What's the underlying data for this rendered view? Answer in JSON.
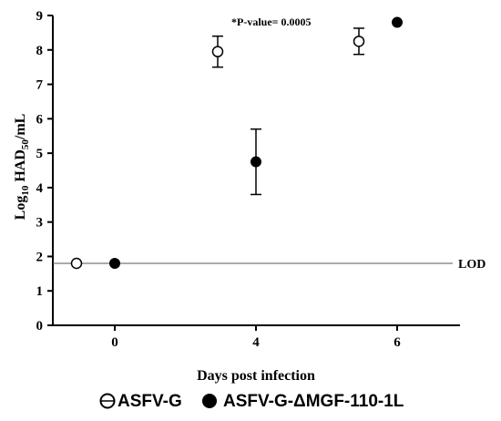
{
  "chart_data": {
    "type": "scatter",
    "title": "",
    "ylabel_main": "Log",
    "ylabel_sub": "10",
    "ylabel_mid": " HAD",
    "ylabel_sub2": "50",
    "ylabel_end": "/mL",
    "xlabel": "Days post infection",
    "ylim": [
      0,
      9
    ],
    "yticks": [
      "0",
      "1",
      "2",
      "3",
      "4",
      "5",
      "6",
      "7",
      "8",
      "9"
    ],
    "xticks": [
      "0",
      "4",
      "6"
    ],
    "annotation": "*P-value= 0.0005",
    "lod": {
      "value": 1.8,
      "label": "LOD"
    },
    "series": [
      {
        "name": "ASFV-G",
        "marker": "open-circle",
        "points": [
          {
            "x": "0",
            "y": 1.8,
            "err": 0
          },
          {
            "x": "4",
            "y": 7.95,
            "err": 0.45
          },
          {
            "x": "6",
            "y": 8.25,
            "err": 0.38
          }
        ]
      },
      {
        "name": "ASFV-G-ΔMGF-110-1L",
        "marker": "filled-circle",
        "points": [
          {
            "x": "0",
            "y": 1.8,
            "err": 0
          },
          {
            "x": "4",
            "y": 4.75,
            "err": 0.95
          },
          {
            "x": "6",
            "y": 8.8,
            "err": 0
          }
        ]
      }
    ],
    "grid": false,
    "legend_position": "bottom"
  }
}
